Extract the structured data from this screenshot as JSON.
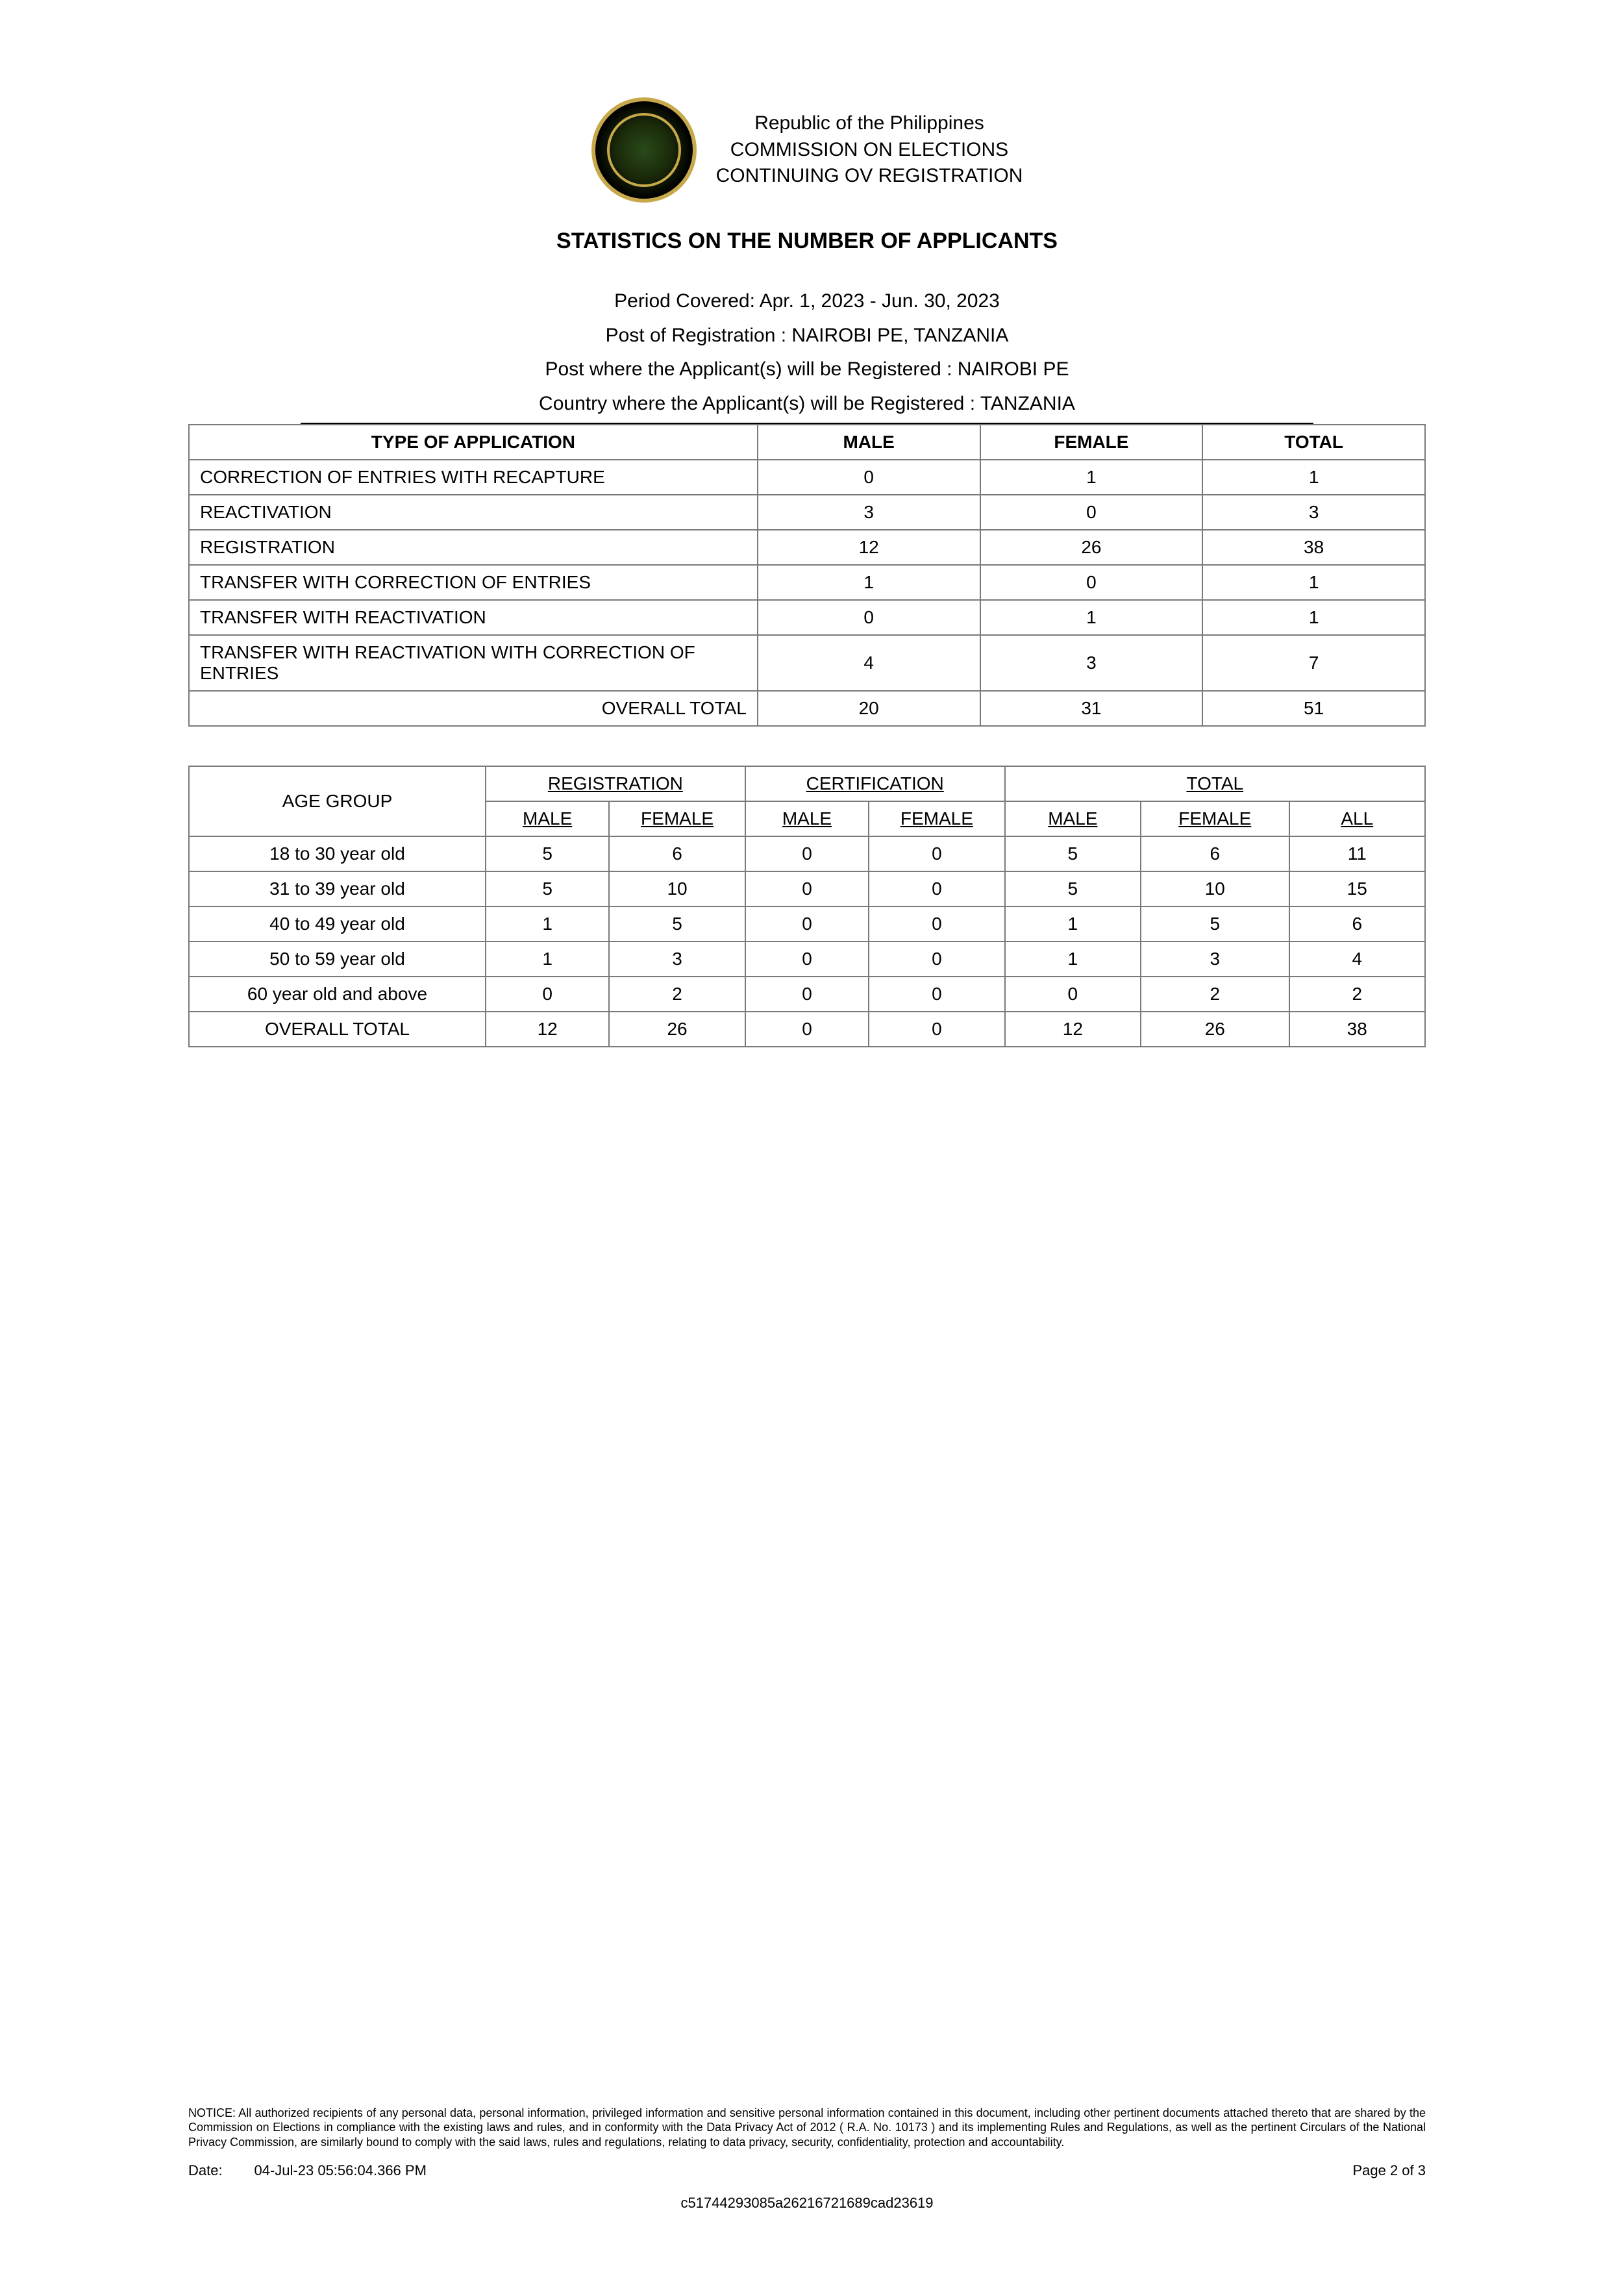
{
  "header": {
    "line1": "Republic of the Philippines",
    "line2": "COMMISSION ON ELECTIONS",
    "line3": "CONTINUING OV REGISTRATION"
  },
  "title": "STATISTICS ON THE NUMBER OF APPLICANTS",
  "meta": {
    "period": "Period Covered: Apr. 1, 2023 - Jun. 30, 2023",
    "post_reg": "Post of Registration : NAIROBI PE, TANZANIA",
    "post_will": "Post where the Applicant(s) will be Registered : NAIROBI PE",
    "country": "Country where the Applicant(s) will be Registered :   TANZANIA"
  },
  "table1": {
    "headers": {
      "type": "TYPE OF APPLICATION",
      "male": "MALE",
      "female": "FEMALE",
      "total": "TOTAL"
    },
    "rows": [
      {
        "type": "CORRECTION OF ENTRIES WITH  RECAPTURE",
        "male": "0",
        "female": "1",
        "total": "1"
      },
      {
        "type": "REACTIVATION",
        "male": "3",
        "female": "0",
        "total": "3"
      },
      {
        "type": "REGISTRATION",
        "male": "12",
        "female": "26",
        "total": "38"
      },
      {
        "type": "TRANSFER WITH CORRECTION OF ENTRIES",
        "male": "1",
        "female": "0",
        "total": "1"
      },
      {
        "type": "TRANSFER WITH REACTIVATION",
        "male": "0",
        "female": "1",
        "total": "1"
      },
      {
        "type": "TRANSFER  WITH  REACTIVATION  WITH CORRECTION  OF  ENTRIES",
        "male": "4",
        "female": "3",
        "total": "7"
      }
    ],
    "overall": {
      "label": "OVERALL TOTAL",
      "male": "20",
      "female": "31",
      "total": "51"
    }
  },
  "table2": {
    "group_headers": {
      "age": "AGE GROUP",
      "reg": "REGISTRATION",
      "cert": "CERTIFICATION",
      "tot": "TOTAL"
    },
    "sub_headers": {
      "male": "MALE",
      "female": "FEMALE",
      "all": "ALL"
    },
    "rows": [
      {
        "age": "18 to 30 year old",
        "rm": "5",
        "rf": "6",
        "cm": "0",
        "cf": "0",
        "tm": "5",
        "tf": "6",
        "all": "11"
      },
      {
        "age": "31 to 39 year old",
        "rm": "5",
        "rf": "10",
        "cm": "0",
        "cf": "0",
        "tm": "5",
        "tf": "10",
        "all": "15"
      },
      {
        "age": "40 to 49 year old",
        "rm": "1",
        "rf": "5",
        "cm": "0",
        "cf": "0",
        "tm": "1",
        "tf": "5",
        "all": "6"
      },
      {
        "age": "50 to 59 year old",
        "rm": "1",
        "rf": "3",
        "cm": "0",
        "cf": "0",
        "tm": "1",
        "tf": "3",
        "all": "4"
      },
      {
        "age": "60 year old and above",
        "rm": "0",
        "rf": "2",
        "cm": "0",
        "cf": "0",
        "tm": "0",
        "tf": "2",
        "all": "2"
      }
    ],
    "overall": {
      "label": "OVERALL TOTAL",
      "rm": "12",
      "rf": "26",
      "cm": "0",
      "cf": "0",
      "tm": "12",
      "tf": "26",
      "all": "38"
    }
  },
  "footer": {
    "notice": "NOTICE: All authorized recipients of any personal data, personal information, privileged information and sensitive personal information contained in this document, including other pertinent documents attached thereto that are shared by the Commission on Elections in compliance with the existing laws and rules, and in conformity with the Data Privacy Act of 2012 ( R.A. No. 10173 ) and its implementing Rules and Regulations, as well as the pertinent Circulars of the National Privacy Commission, are similarly bound to comply with the said laws, rules and regulations, relating to data privacy, security, confidentiality, protection and accountability.",
    "date_label": "Date:",
    "date_value": "04-Jul-23 05:56:04.366 PM",
    "page": "Page 2 of 3",
    "docid": "c51744293085a26216721689cad23619"
  },
  "style": {
    "colors": {
      "text": "#000000",
      "border": "#7a7a7a",
      "background": "#ffffff",
      "seal_gold": "#c7a84b",
      "seal_dark": "#1a2a0a"
    },
    "fonts": {
      "body_pt": 28,
      "title_pt": 34,
      "header_pt": 30,
      "footer_small_pt": 18
    }
  }
}
